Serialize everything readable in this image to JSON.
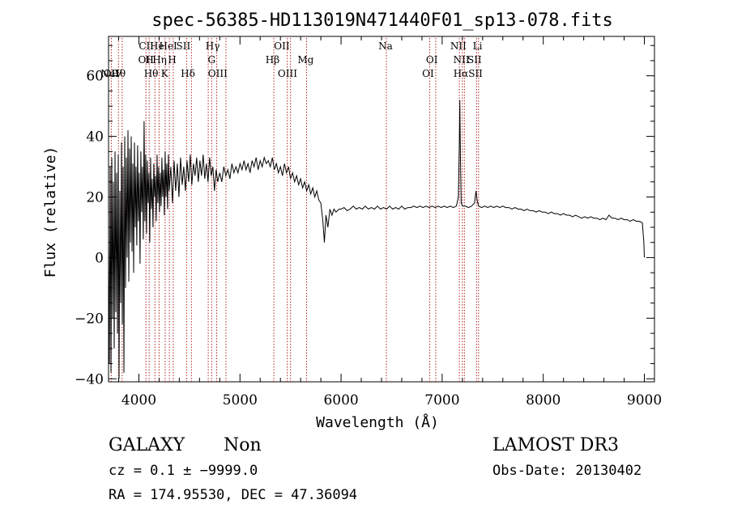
{
  "chart_data": {
    "type": "line",
    "title": "spec-56385-HD113019N471440F01_sp13-078.fits",
    "xlabel": "Wavelength (Å)",
    "ylabel": "Flux (relative)",
    "xlim": [
      3700,
      9100
    ],
    "ylim": [
      -41,
      73
    ],
    "x_ticks": [
      4000,
      5000,
      6000,
      7000,
      8000,
      9000
    ],
    "y_ticks": [
      -40,
      -20,
      0,
      20,
      40,
      60
    ],
    "x_tick_labels": [
      "4000",
      "5000",
      "6000",
      "7000",
      "8000",
      "9000"
    ],
    "y_tick_labels": [
      "−40",
      "−20",
      "0",
      "20",
      "40",
      "60"
    ],
    "line_color": "#000000",
    "marker_color": "#b22222",
    "spectral_lines": [
      {
        "label": "NeV",
        "wavelength": 3727,
        "row": 3
      },
      {
        "label": "OII",
        "wavelength": 3727,
        "row": 3
      },
      {
        "label": "Hθ",
        "wavelength": 3798,
        "row": 3
      },
      {
        "label": "CII",
        "wavelength": 4074,
        "row": 0
      },
      {
        "label": "OII",
        "wavelength": 4070,
        "row": 1
      },
      {
        "label": "Hθ",
        "wavelength": 4121,
        "row": 2
      },
      {
        "label": "H",
        "wavelength": 4105,
        "row": 1
      },
      {
        "label": "He",
        "wavelength": 4179,
        "row": 0
      },
      {
        "label": "Hη",
        "wavelength": 4205,
        "row": 1
      },
      {
        "label": "K",
        "wavelength": 4255,
        "row": 2
      },
      {
        "label": "HeI",
        "wavelength": 4290,
        "row": 0
      },
      {
        "label": "H",
        "wavelength": 4330,
        "row": 1
      },
      {
        "label": "SII",
        "wavelength": 4440,
        "row": 0
      },
      {
        "label": "Hδ",
        "wavelength": 4485,
        "row": 2
      },
      {
        "label": "Hγ",
        "wavelength": 4730,
        "row": 0
      },
      {
        "label": "G",
        "wavelength": 4720,
        "row": 1
      },
      {
        "label": "OIII",
        "wavelength": 4780,
        "row": 2
      },
      {
        "label": "Hβ",
        "wavelength": 5322,
        "row": 1
      },
      {
        "label": "OII",
        "wavelength": 5414,
        "row": 0
      },
      {
        "label": "OIII",
        "wavelength": 5470,
        "row": 2
      },
      {
        "label": "Mg",
        "wavelength": 5650,
        "row": 1
      },
      {
        "label": "Na",
        "wavelength": 6440,
        "row": 0
      },
      {
        "label": "OI",
        "wavelength": 6898,
        "row": 1
      },
      {
        "label": "OI",
        "wavelength": 6860,
        "row": 2
      },
      {
        "label": "NII",
        "wavelength": 7160,
        "row": 0
      },
      {
        "label": "NII",
        "wavelength": 7190,
        "row": 1
      },
      {
        "label": "Hα",
        "wavelength": 7185,
        "row": 2
      },
      {
        "label": "Li",
        "wavelength": 7350,
        "row": 0
      },
      {
        "label": "SII",
        "wavelength": 7320,
        "row": 1
      },
      {
        "label": "SII",
        "wavelength": 7330,
        "row": 2
      }
    ],
    "marker_lines": [
      3727,
      3798,
      3835,
      4070,
      4102,
      4159,
      4200,
      4260,
      4302,
      4340,
      4472,
      4520,
      4686,
      4720,
      4770,
      4861,
      5335,
      5468,
      5500,
      5659,
      6448,
      6877,
      6936,
      7170,
      7200,
      7220,
      7340,
      7360
    ],
    "series": [
      {
        "name": "flux",
        "points": [
          [
            3700,
            5
          ],
          [
            3708,
            -35
          ],
          [
            3716,
            30
          ],
          [
            3724,
            -38
          ],
          [
            3732,
            33
          ],
          [
            3740,
            -20
          ],
          [
            3748,
            25
          ],
          [
            3756,
            -30
          ],
          [
            3764,
            35
          ],
          [
            3772,
            -18
          ],
          [
            3780,
            28
          ],
          [
            3788,
            -25
          ],
          [
            3796,
            34
          ],
          [
            3804,
            -40
          ],
          [
            3812,
            22
          ],
          [
            3820,
            -15
          ],
          [
            3828,
            38
          ],
          [
            3836,
            -22
          ],
          [
            3844,
            30
          ],
          [
            3852,
            -38
          ],
          [
            3860,
            40
          ],
          [
            3868,
            -10
          ],
          [
            3876,
            33
          ],
          [
            3884,
            0
          ],
          [
            3892,
            42
          ],
          [
            3900,
            -8
          ],
          [
            3908,
            36
          ],
          [
            3916,
            5
          ],
          [
            3924,
            40
          ],
          [
            3932,
            2
          ],
          [
            3940,
            31
          ],
          [
            3948,
            -5
          ],
          [
            3956,
            38
          ],
          [
            3964,
            10
          ],
          [
            3972,
            30
          ],
          [
            3980,
            4
          ],
          [
            3988,
            37
          ],
          [
            3996,
            12
          ],
          [
            4004,
            28
          ],
          [
            4012,
            -2
          ],
          [
            4020,
            35
          ],
          [
            4028,
            15
          ],
          [
            4036,
            30
          ],
          [
            4044,
            6
          ],
          [
            4052,
            45
          ],
          [
            4060,
            12
          ],
          [
            4068,
            34
          ],
          [
            4076,
            8
          ],
          [
            4084,
            32
          ],
          [
            4092,
            18
          ],
          [
            4100,
            28
          ],
          [
            4108,
            5
          ],
          [
            4116,
            33
          ],
          [
            4124,
            16
          ],
          [
            4132,
            26
          ],
          [
            4140,
            10
          ],
          [
            4148,
            31
          ],
          [
            4156,
            20
          ],
          [
            4164,
            27
          ],
          [
            4172,
            12
          ],
          [
            4180,
            34
          ],
          [
            4188,
            18
          ],
          [
            4196,
            30
          ],
          [
            4204,
            15
          ],
          [
            4212,
            28
          ],
          [
            4220,
            17
          ],
          [
            4228,
            33
          ],
          [
            4236,
            20
          ],
          [
            4244,
            29
          ],
          [
            4252,
            14
          ],
          [
            4260,
            35
          ],
          [
            4268,
            20
          ],
          [
            4276,
            31
          ],
          [
            4284,
            16
          ],
          [
            4292,
            34
          ],
          [
            4300,
            22
          ],
          [
            4316,
            30
          ],
          [
            4332,
            18
          ],
          [
            4348,
            32
          ],
          [
            4364,
            22
          ],
          [
            4380,
            31
          ],
          [
            4396,
            20
          ],
          [
            4412,
            33
          ],
          [
            4428,
            24
          ],
          [
            4444,
            30
          ],
          [
            4460,
            22
          ],
          [
            4476,
            32
          ],
          [
            4492,
            25
          ],
          [
            4508,
            34
          ],
          [
            4524,
            24
          ],
          [
            4540,
            31
          ],
          [
            4556,
            27
          ],
          [
            4572,
            33
          ],
          [
            4588,
            25
          ],
          [
            4604,
            32
          ],
          [
            4620,
            27
          ],
          [
            4636,
            34
          ],
          [
            4652,
            26
          ],
          [
            4668,
            31
          ],
          [
            4684,
            25
          ],
          [
            4700,
            33
          ],
          [
            4716,
            27
          ],
          [
            4732,
            30
          ],
          [
            4748,
            22
          ],
          [
            4764,
            29
          ],
          [
            4780,
            25
          ],
          [
            4800,
            28
          ],
          [
            4820,
            25
          ],
          [
            4840,
            30
          ],
          [
            4860,
            27
          ],
          [
            4880,
            29
          ],
          [
            4900,
            26
          ],
          [
            4920,
            31
          ],
          [
            4940,
            28
          ],
          [
            4960,
            30
          ],
          [
            4980,
            28
          ],
          [
            5000,
            31
          ],
          [
            5020,
            29
          ],
          [
            5040,
            32
          ],
          [
            5060,
            29
          ],
          [
            5080,
            31
          ],
          [
            5100,
            28
          ],
          [
            5120,
            32
          ],
          [
            5140,
            30
          ],
          [
            5160,
            33
          ],
          [
            5180,
            29
          ],
          [
            5200,
            32
          ],
          [
            5220,
            30
          ],
          [
            5240,
            33
          ],
          [
            5260,
            31
          ],
          [
            5280,
            32
          ],
          [
            5300,
            30
          ],
          [
            5320,
            33
          ],
          [
            5340,
            29
          ],
          [
            5360,
            31
          ],
          [
            5380,
            28
          ],
          [
            5400,
            30
          ],
          [
            5420,
            27
          ],
          [
            5440,
            31
          ],
          [
            5460,
            28
          ],
          [
            5480,
            30
          ],
          [
            5500,
            26
          ],
          [
            5520,
            28
          ],
          [
            5540,
            25
          ],
          [
            5560,
            27
          ],
          [
            5580,
            24
          ],
          [
            5600,
            26
          ],
          [
            5620,
            23
          ],
          [
            5640,
            25
          ],
          [
            5660,
            22
          ],
          [
            5680,
            24
          ],
          [
            5700,
            21
          ],
          [
            5720,
            23
          ],
          [
            5740,
            20
          ],
          [
            5760,
            22
          ],
          [
            5780,
            19
          ],
          [
            5800,
            18
          ],
          [
            5820,
            12
          ],
          [
            5835,
            5
          ],
          [
            5850,
            14
          ],
          [
            5870,
            10
          ],
          [
            5890,
            16
          ],
          [
            5910,
            14
          ],
          [
            5930,
            16
          ],
          [
            5950,
            15
          ],
          [
            5980,
            16
          ],
          [
            6000,
            16
          ],
          [
            6030,
            16.5
          ],
          [
            6060,
            15.5
          ],
          [
            6090,
            16
          ],
          [
            6120,
            17
          ],
          [
            6150,
            16
          ],
          [
            6180,
            16.5
          ],
          [
            6210,
            16
          ],
          [
            6240,
            17
          ],
          [
            6270,
            16
          ],
          [
            6300,
            16.5
          ],
          [
            6330,
            16
          ],
          [
            6360,
            17
          ],
          [
            6390,
            16
          ],
          [
            6420,
            16.5
          ],
          [
            6450,
            16
          ],
          [
            6480,
            17
          ],
          [
            6510,
            16
          ],
          [
            6540,
            16.5
          ],
          [
            6570,
            16
          ],
          [
            6600,
            17
          ],
          [
            6630,
            16
          ],
          [
            6660,
            16.5
          ],
          [
            6690,
            16.5
          ],
          [
            6720,
            17
          ],
          [
            6750,
            16.5
          ],
          [
            6780,
            17
          ],
          [
            6810,
            16.5
          ],
          [
            6840,
            17
          ],
          [
            6870,
            16.5
          ],
          [
            6900,
            17
          ],
          [
            6930,
            16.5
          ],
          [
            6960,
            17
          ],
          [
            6990,
            16.5
          ],
          [
            7020,
            17
          ],
          [
            7050,
            16.5
          ],
          [
            7080,
            17
          ],
          [
            7110,
            16.5
          ],
          [
            7140,
            17
          ],
          [
            7160,
            20
          ],
          [
            7170,
            38
          ],
          [
            7175,
            52
          ],
          [
            7180,
            34
          ],
          [
            7188,
            18
          ],
          [
            7200,
            17
          ],
          [
            7230,
            17
          ],
          [
            7260,
            16.5
          ],
          [
            7290,
            17
          ],
          [
            7320,
            18
          ],
          [
            7335,
            22
          ],
          [
            7345,
            19
          ],
          [
            7360,
            17
          ],
          [
            7390,
            16.5
          ],
          [
            7420,
            17
          ],
          [
            7450,
            16.5
          ],
          [
            7480,
            17
          ],
          [
            7510,
            16.5
          ],
          [
            7540,
            17
          ],
          [
            7570,
            16.5
          ],
          [
            7600,
            17
          ],
          [
            7630,
            16.5
          ],
          [
            7660,
            16.5
          ],
          [
            7690,
            16
          ],
          [
            7720,
            16.5
          ],
          [
            7750,
            16
          ],
          [
            7780,
            16
          ],
          [
            7810,
            15.5
          ],
          [
            7840,
            16
          ],
          [
            7870,
            15.5
          ],
          [
            7900,
            15.5
          ],
          [
            7930,
            15
          ],
          [
            7960,
            15.5
          ],
          [
            7990,
            15
          ],
          [
            8020,
            15
          ],
          [
            8050,
            14.5
          ],
          [
            8080,
            15
          ],
          [
            8110,
            14.5
          ],
          [
            8140,
            14.5
          ],
          [
            8170,
            14
          ],
          [
            8200,
            14.5
          ],
          [
            8230,
            14
          ],
          [
            8260,
            14
          ],
          [
            8290,
            13.5
          ],
          [
            8320,
            14
          ],
          [
            8350,
            13.5
          ],
          [
            8380,
            13
          ],
          [
            8410,
            13.5
          ],
          [
            8440,
            13
          ],
          [
            8470,
            13.5
          ],
          [
            8500,
            13
          ],
          [
            8530,
            13
          ],
          [
            8560,
            12.5
          ],
          [
            8590,
            13
          ],
          [
            8620,
            12.5
          ],
          [
            8650,
            14
          ],
          [
            8680,
            13
          ],
          [
            8710,
            13
          ],
          [
            8740,
            12.5
          ],
          [
            8770,
            13
          ],
          [
            8800,
            12.5
          ],
          [
            8830,
            12.5
          ],
          [
            8860,
            12
          ],
          [
            8890,
            12.5
          ],
          [
            8920,
            12
          ],
          [
            8950,
            12
          ],
          [
            8980,
            11.5
          ],
          [
            8995,
            5
          ],
          [
            9000,
            0
          ]
        ]
      }
    ]
  },
  "header": {
    "object_class": "GALAXY",
    "subclass": "Non",
    "survey": "LAMOST DR3",
    "redshift": "cz = 0.1 ± −9999.0",
    "obs_date": "Obs-Date: 20130402",
    "coords": "RA = 174.95530, DEC =  47.36094"
  }
}
